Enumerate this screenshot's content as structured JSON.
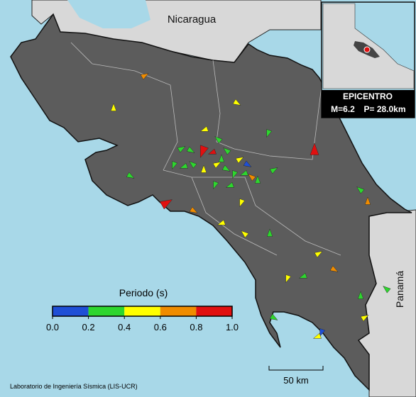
{
  "labels": {
    "nicaragua": "Nicaragua",
    "panama": "Panamá",
    "credit": "Laboratorio de Ingeniería Sísmica (LIS-UCR)",
    "scale": "50 km"
  },
  "epicentro": {
    "title": "EPICENTRO",
    "magnitude": "M=6.2",
    "depth": "P= 28.0km"
  },
  "colorbar": {
    "title": "Periodo (s)",
    "colors": [
      "#1f4fd6",
      "#2ed62e",
      "#ffff00",
      "#f08c00",
      "#e01010"
    ],
    "ticks": [
      {
        "value": 0,
        "label": "0.0"
      },
      {
        "value": 0.2,
        "label": "0.2"
      },
      {
        "value": 0.4,
        "label": "0.4"
      },
      {
        "value": 0.6,
        "label": "0.6"
      },
      {
        "value": 0.8,
        "label": "0.8"
      },
      {
        "value": 1,
        "label": "1.0"
      }
    ]
  },
  "station_periods": [
    0.5,
    0.7,
    0.5,
    0.3,
    0.5,
    0.3,
    0.9,
    0.3,
    0.3,
    0.95,
    0.85,
    0.3,
    0.3,
    0.5,
    0.1,
    0.3,
    0.3,
    0.3,
    0.5,
    0.5,
    0.3,
    0.3,
    0.3,
    0.7,
    0.3,
    0.3,
    0.3,
    0.3,
    0.3,
    0.3,
    0.7,
    0.9,
    0.7,
    0.5,
    0.5,
    0.5,
    0.3,
    0.5,
    0.7,
    0.5,
    0.3,
    0.3,
    0.3,
    0.5,
    0.3,
    0.1,
    0.5
  ]
}
